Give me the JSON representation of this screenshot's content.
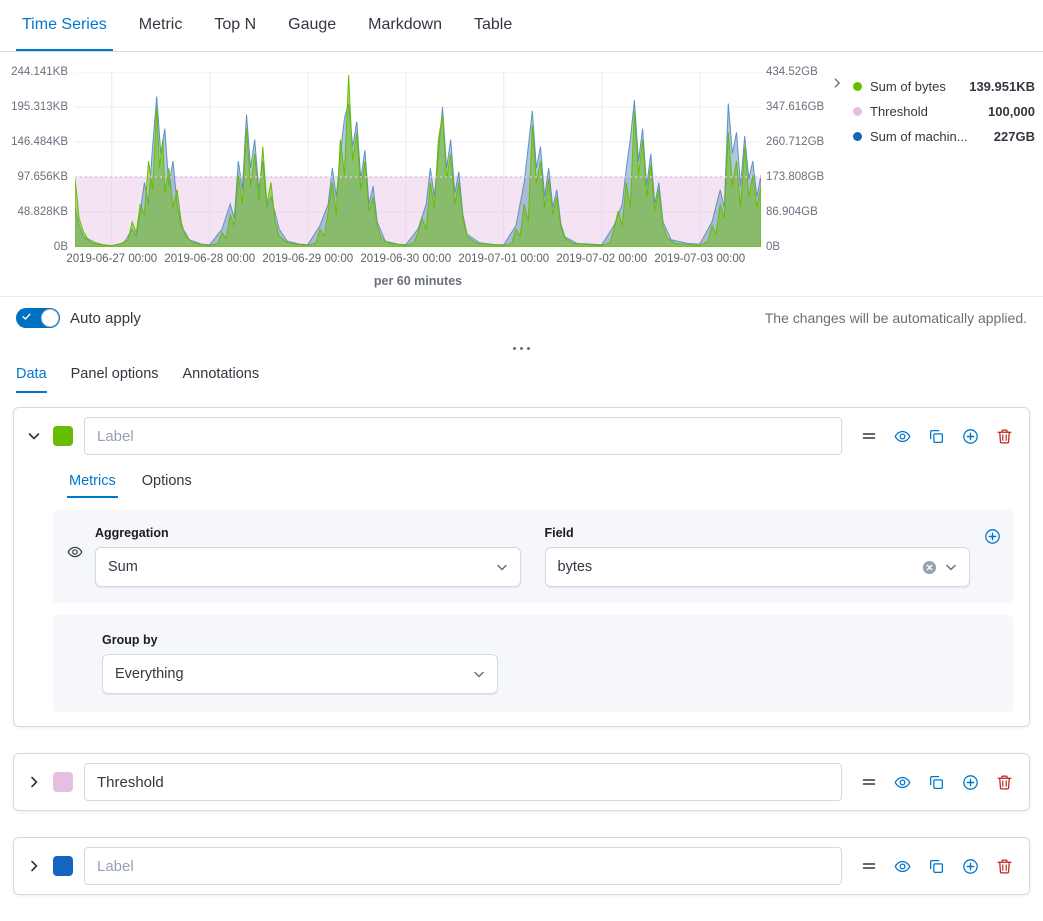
{
  "top_tabs": [
    "Time Series",
    "Metric",
    "Top N",
    "Gauge",
    "Markdown",
    "Table"
  ],
  "chart": {
    "y_left_ticks": [
      "244.141KB",
      "195.313KB",
      "146.484KB",
      "97.656KB",
      "48.828KB",
      "0B"
    ],
    "y_right_ticks": [
      "434.52GB",
      "347.616GB",
      "260.712GB",
      "173.808GB",
      "86.904GB",
      "0B"
    ],
    "x_ticks": [
      "2019-06-27 00:00",
      "2019-06-28 00:00",
      "2019-06-29 00:00",
      "2019-06-30 00:00",
      "2019-07-01 00:00",
      "2019-07-02 00:00",
      "2019-07-03 00:00"
    ],
    "x_axis_label": "per 60 minutes",
    "legend": [
      {
        "label": "Sum of bytes",
        "value": "139.951KB",
        "color": "#68BC00"
      },
      {
        "label": "Threshold",
        "value": "100,000",
        "color": "#E4BFE2"
      },
      {
        "label": "Sum of machin...",
        "value": "227GB",
        "color": "#1565C0"
      }
    ],
    "chart_data": {
      "type": "area",
      "x_unit": "hours (per 60 minutes buckets), plot spans 2019-06-26 15:00 to 2019-07-03 15:00",
      "x_range": [
        0,
        168
      ],
      "midnight_hours": [
        9,
        33,
        57,
        81,
        105,
        129,
        153
      ],
      "y_max_kb": 244.141,
      "y_left_axis": {
        "max": "244.141KB",
        "min": "0B"
      },
      "y_right_axis": {
        "max": "434.52GB",
        "min": "0B"
      },
      "threshold": {
        "value_bytes": 100000,
        "kb": 97.656,
        "fill": "rgba(228,191,226,0.42)",
        "line": "#DFC3DD"
      },
      "series": [
        {
          "name": "Sum of machine.ram",
          "color": "#6092C0",
          "fill": "rgba(96,146,192,0.5)",
          "points": [
            [
              0,
              55
            ],
            [
              1,
              30
            ],
            [
              2,
              15
            ],
            [
              4,
              6
            ],
            [
              6,
              3
            ],
            [
              9,
              2
            ],
            [
              12,
              6
            ],
            [
              14,
              25
            ],
            [
              15,
              15
            ],
            [
              16,
              50
            ],
            [
              17,
              90
            ],
            [
              18,
              60
            ],
            [
              19,
              140
            ],
            [
              20,
              210
            ],
            [
              21,
              130
            ],
            [
              22,
              165
            ],
            [
              23,
              85
            ],
            [
              24,
              120
            ],
            [
              25,
              60
            ],
            [
              26,
              30
            ],
            [
              28,
              10
            ],
            [
              31,
              4
            ],
            [
              33,
              3
            ],
            [
              36,
              25
            ],
            [
              38,
              60
            ],
            [
              39,
              40
            ],
            [
              40,
              120
            ],
            [
              41,
              80
            ],
            [
              42,
              185
            ],
            [
              43,
              110
            ],
            [
              44,
              150
            ],
            [
              45,
              80
            ],
            [
              46,
              120
            ],
            [
              47,
              55
            ],
            [
              48,
              70
            ],
            [
              50,
              25
            ],
            [
              52,
              8
            ],
            [
              55,
              4
            ],
            [
              57,
              3
            ],
            [
              60,
              30
            ],
            [
              62,
              60
            ],
            [
              63,
              110
            ],
            [
              64,
              70
            ],
            [
              65,
              130
            ],
            [
              66,
              180
            ],
            [
              67,
              200
            ],
            [
              68,
              140
            ],
            [
              69,
              175
            ],
            [
              70,
              95
            ],
            [
              71,
              135
            ],
            [
              72,
              60
            ],
            [
              73,
              85
            ],
            [
              74,
              35
            ],
            [
              76,
              8
            ],
            [
              79,
              4
            ],
            [
              81,
              3
            ],
            [
              84,
              25
            ],
            [
              86,
              60
            ],
            [
              87,
              110
            ],
            [
              88,
              70
            ],
            [
              89,
              130
            ],
            [
              90,
              195
            ],
            [
              91,
              110
            ],
            [
              92,
              150
            ],
            [
              93,
              75
            ],
            [
              94,
              105
            ],
            [
              95,
              45
            ],
            [
              96,
              18
            ],
            [
              99,
              6
            ],
            [
              103,
              3
            ],
            [
              105,
              3
            ],
            [
              108,
              30
            ],
            [
              110,
              90
            ],
            [
              111,
              140
            ],
            [
              112,
              190
            ],
            [
              113,
              110
            ],
            [
              114,
              140
            ],
            [
              115,
              70
            ],
            [
              116,
              110
            ],
            [
              117,
              55
            ],
            [
              118,
              80
            ],
            [
              119,
              32
            ],
            [
              120,
              14
            ],
            [
              123,
              5
            ],
            [
              129,
              3
            ],
            [
              132,
              30
            ],
            [
              134,
              60
            ],
            [
              135,
              110
            ],
            [
              136,
              150
            ],
            [
              137,
              205
            ],
            [
              138,
              120
            ],
            [
              139,
              165
            ],
            [
              140,
              85
            ],
            [
              141,
              130
            ],
            [
              142,
              60
            ],
            [
              143,
              90
            ],
            [
              144,
              35
            ],
            [
              146,
              10
            ],
            [
              150,
              5
            ],
            [
              153,
              4
            ],
            [
              156,
              35
            ],
            [
              158,
              80
            ],
            [
              159,
              55
            ],
            [
              160,
              200
            ],
            [
              161,
              130
            ],
            [
              162,
              160
            ],
            [
              163,
              85
            ],
            [
              164,
              155
            ],
            [
              165,
              95
            ],
            [
              166,
              120
            ],
            [
              167,
              70
            ],
            [
              168,
              100
            ]
          ]
        },
        {
          "name": "Sum of bytes",
          "color": "#68BC00",
          "fill": "rgba(104,188,0,0.5)",
          "points": [
            [
              0,
              95
            ],
            [
              0.5,
              70
            ],
            [
              1,
              40
            ],
            [
              2,
              22
            ],
            [
              3,
              12
            ],
            [
              5,
              6
            ],
            [
              7,
              3
            ],
            [
              9,
              2
            ],
            [
              11,
              4
            ],
            [
              13,
              10
            ],
            [
              14,
              35
            ],
            [
              15,
              20
            ],
            [
              16,
              60
            ],
            [
              17,
              45
            ],
            [
              18,
              120
            ],
            [
              19,
              80
            ],
            [
              20,
              195
            ],
            [
              20.7,
              110
            ],
            [
              21.5,
              150
            ],
            [
              22,
              75
            ],
            [
              23,
              110
            ],
            [
              24,
              55
            ],
            [
              25,
              80
            ],
            [
              26,
              35
            ],
            [
              27,
              15
            ],
            [
              29,
              6
            ],
            [
              31,
              3
            ],
            [
              33,
              2
            ],
            [
              35,
              5
            ],
            [
              36,
              20
            ],
            [
              37,
              12
            ],
            [
              38,
              45
            ],
            [
              39,
              30
            ],
            [
              40,
              100
            ],
            [
              41,
              60
            ],
            [
              42,
              165
            ],
            [
              43,
              85
            ],
            [
              44,
              130
            ],
            [
              45,
              65
            ],
            [
              46,
              140
            ],
            [
              47,
              60
            ],
            [
              48,
              90
            ],
            [
              49,
              35
            ],
            [
              50,
              15
            ],
            [
              52,
              6
            ],
            [
              55,
              3
            ],
            [
              57,
              2
            ],
            [
              59,
              6
            ],
            [
              60,
              25
            ],
            [
              61,
              15
            ],
            [
              62,
              50
            ],
            [
              63,
              90
            ],
            [
              64,
              45
            ],
            [
              65,
              150
            ],
            [
              66,
              100
            ],
            [
              67,
              240
            ],
            [
              68,
              120
            ],
            [
              69,
              160
            ],
            [
              70,
              80
            ],
            [
              71,
              120
            ],
            [
              72,
              50
            ],
            [
              73,
              70
            ],
            [
              74,
              30
            ],
            [
              75,
              12
            ],
            [
              77,
              5
            ],
            [
              81,
              2
            ],
            [
              83,
              6
            ],
            [
              84,
              20
            ],
            [
              85,
              40
            ],
            [
              86,
              25
            ],
            [
              87,
              90
            ],
            [
              88,
              55
            ],
            [
              89,
              150
            ],
            [
              90,
              185
            ],
            [
              91,
              95
            ],
            [
              92,
              130
            ],
            [
              93,
              60
            ],
            [
              94,
              90
            ],
            [
              95,
              40
            ],
            [
              96,
              15
            ],
            [
              98,
              6
            ],
            [
              102,
              3
            ],
            [
              105,
              2
            ],
            [
              107,
              6
            ],
            [
              108,
              25
            ],
            [
              109,
              15
            ],
            [
              110,
              60
            ],
            [
              111,
              35
            ],
            [
              112,
              170
            ],
            [
              113,
              90
            ],
            [
              114,
              120
            ],
            [
              115,
              55
            ],
            [
              116,
              95
            ],
            [
              117,
              45
            ],
            [
              118,
              70
            ],
            [
              119,
              28
            ],
            [
              120,
              12
            ],
            [
              122,
              5
            ],
            [
              126,
              3
            ],
            [
              129,
              2
            ],
            [
              131,
              6
            ],
            [
              132,
              25
            ],
            [
              133,
              50
            ],
            [
              134,
              30
            ],
            [
              135,
              90
            ],
            [
              136,
              55
            ],
            [
              137,
              190
            ],
            [
              138,
              100
            ],
            [
              139,
              150
            ],
            [
              140,
              70
            ],
            [
              141,
              115
            ],
            [
              142,
              50
            ],
            [
              143,
              80
            ],
            [
              144,
              30
            ],
            [
              145,
              12
            ],
            [
              147,
              5
            ],
            [
              151,
              3
            ],
            [
              153,
              2
            ],
            [
              155,
              8
            ],
            [
              156,
              30
            ],
            [
              157,
              18
            ],
            [
              158,
              60
            ],
            [
              159,
              40
            ],
            [
              160,
              160
            ],
            [
              161,
              85
            ],
            [
              162,
              120
            ],
            [
              163,
              55
            ],
            [
              164,
              140
            ],
            [
              165,
              70
            ],
            [
              166,
              100
            ],
            [
              167,
              55
            ],
            [
              168,
              85
            ]
          ]
        }
      ]
    }
  },
  "auto_apply": {
    "label": "Auto apply",
    "enabled": true,
    "description": "The changes will be automatically applied."
  },
  "editor_tabs": [
    "Data",
    "Panel options",
    "Annotations"
  ],
  "series_panels": [
    {
      "color": "#68BC00",
      "label_placeholder": "Label",
      "tabs": [
        "Metrics",
        "Options"
      ],
      "aggregation": {
        "label": "Aggregation",
        "value": "Sum"
      },
      "field": {
        "label": "Field",
        "value": "bytes"
      },
      "group_by": {
        "label": "Group by",
        "value": "Everything"
      }
    },
    {
      "color": "#E4BFE2",
      "label_value": "Threshold"
    },
    {
      "color": "#1565C0",
      "label_placeholder": "Label"
    }
  ]
}
